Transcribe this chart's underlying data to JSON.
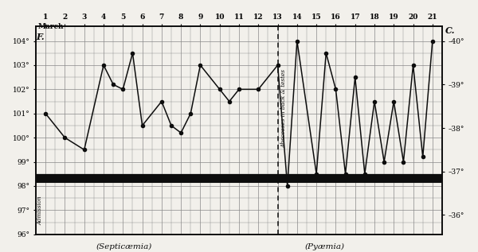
{
  "days": [
    1,
    2,
    3,
    4,
    4.5,
    5,
    5.5,
    6,
    7,
    7.5,
    8,
    8.5,
    9,
    10,
    10.5,
    11,
    12,
    13,
    13.5,
    14,
    15,
    15.5,
    16,
    16.5,
    17,
    17.5,
    18,
    18.5,
    19,
    19.5,
    20,
    20.5,
    21
  ],
  "temps": [
    101,
    100,
    99.5,
    103,
    102.2,
    102,
    103.5,
    100.5,
    101.5,
    100.5,
    100.2,
    101,
    103,
    102,
    101.5,
    102,
    102,
    103,
    98,
    104,
    98.5,
    103.5,
    102,
    98.5,
    102.5,
    98.5,
    101.5,
    99,
    101.5,
    99,
    103,
    99.2,
    104
  ],
  "dashed_line_x": 13,
  "annotation_text": "Abscesses in back & testes",
  "septicaemia_label": "(Septicæmia)",
  "pyaemia_label": "(Pyæmia)",
  "left_label": "F.",
  "right_label": "C.",
  "top_label": "March",
  "admission_text": "Admission",
  "ylim_f": [
    96,
    104.6
  ],
  "yticks_f": [
    96,
    97,
    98,
    99,
    100,
    101,
    102,
    103,
    104
  ],
  "right_ytick_positions": [
    96.8,
    98.6,
    100.4,
    102.2,
    104.0
  ],
  "right_ytick_labels": [
    "–36°",
    "–37°",
    "–38°",
    "–39°",
    "–40°"
  ],
  "background_color": "#f2f0eb",
  "line_color": "#0d0d0d",
  "grid_color": "#888888",
  "thick_line_y1": 98.15,
  "thick_line_y2": 98.45,
  "xlim": [
    0.5,
    21.5
  ],
  "day_ticks": [
    1,
    2,
    3,
    4,
    5,
    6,
    7,
    8,
    9,
    10,
    11,
    12,
    13,
    14,
    15,
    16,
    17,
    18,
    19,
    20,
    21
  ]
}
